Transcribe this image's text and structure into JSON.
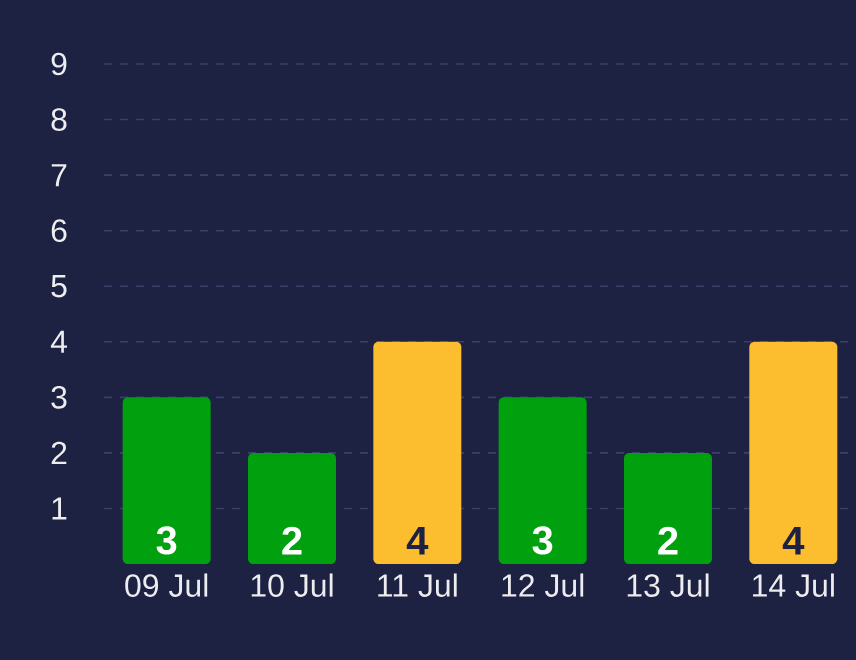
{
  "chart_data": {
    "type": "bar",
    "categories": [
      "09 Jul",
      "10 Jul",
      "11 Jul",
      "12 Jul",
      "13 Jul",
      "14 Jul"
    ],
    "values": [
      3,
      2,
      4,
      3,
      2,
      4
    ],
    "colors": [
      "#00a00f",
      "#00a00f",
      "#fcbd2e",
      "#00a00f",
      "#00a00f",
      "#fcbd2e"
    ],
    "ylim": [
      0,
      9
    ],
    "yticks": [
      1,
      2,
      3,
      4,
      5,
      6,
      7,
      8,
      9
    ],
    "grid": "y",
    "data_labels": true
  }
}
